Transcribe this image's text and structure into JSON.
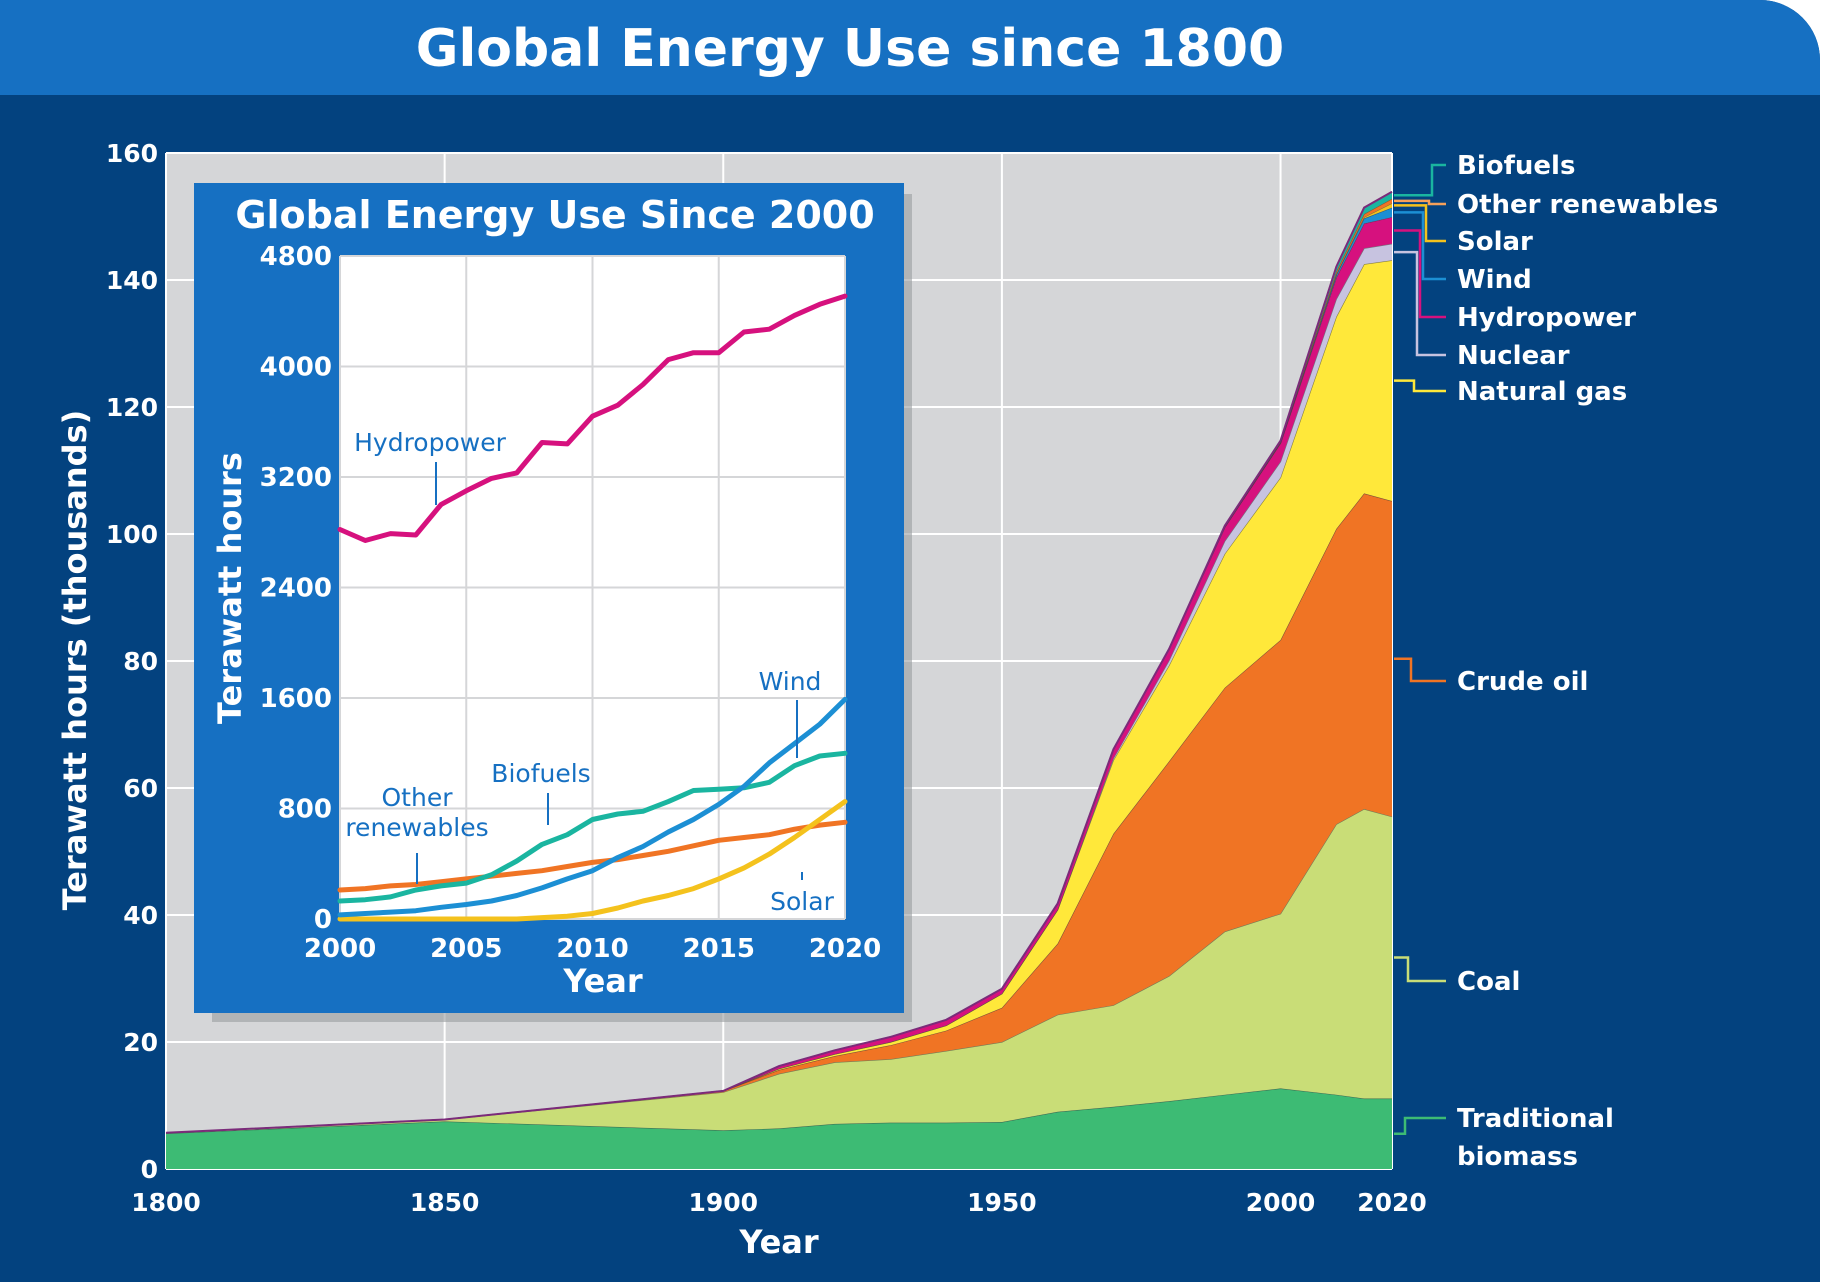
{
  "chart_data": [
    {
      "type": "area",
      "stacked": true,
      "title": "Global Energy Use since 1800",
      "xlabel": "Year",
      "ylabel": "Terawatt hours (thousands)",
      "xlim": [
        1800,
        2020
      ],
      "ylim": [
        0,
        160
      ],
      "x_ticks": [
        "1800",
        "1850",
        "1900",
        "1950",
        "2000",
        "2020"
      ],
      "y_ticks": [
        "0",
        "20",
        "40",
        "60",
        "80",
        "100",
        "120",
        "140",
        "160"
      ],
      "grid": true,
      "legend_placement": "right",
      "x": [
        1800,
        1850,
        1900,
        1910,
        1920,
        1930,
        1940,
        1950,
        1960,
        1970,
        1980,
        1990,
        2000,
        2010,
        2015,
        2020
      ],
      "series": [
        {
          "name": "Traditional biomass",
          "color": "#3dbb74",
          "values": [
            5.6,
            7.5,
            6.1,
            6.4,
            7.1,
            7.3,
            7.3,
            7.4,
            9.0,
            9.8,
            10.7,
            11.7,
            12.7,
            11.7,
            11.1,
            11.1
          ]
        },
        {
          "name": "Coal",
          "color": "#c9dd77",
          "values": [
            0.1,
            0.3,
            6.0,
            8.6,
            9.7,
            10.0,
            11.3,
            12.6,
            15.3,
            16.0,
            19.7,
            25.7,
            27.5,
            42.6,
            45.6,
            44.4
          ]
        },
        {
          "name": "Crude oil",
          "color": "#f07424",
          "values": [
            0,
            0,
            0.2,
            0.6,
            1.0,
            2.2,
            3.2,
            5.4,
            11.2,
            27.0,
            33.8,
            38.4,
            43.1,
            46.5,
            49.7,
            49.7
          ]
        },
        {
          "name": "Natural gas",
          "color": "#ffe83a",
          "values": [
            0,
            0,
            0,
            0.2,
            0.3,
            0.5,
            0.8,
            2.2,
            5.3,
            11.6,
            15.1,
            21.1,
            25.6,
            33.4,
            36.1,
            37.9
          ]
        },
        {
          "name": "Nuclear",
          "color": "#c7c3e0",
          "values": [
            0,
            0,
            0,
            0,
            0,
            0,
            0,
            0,
            0,
            0.3,
            0.8,
            2.0,
            2.5,
            2.8,
            2.5,
            2.6
          ]
        },
        {
          "name": "Hydropower",
          "color": "#d6117e",
          "values": [
            0,
            0,
            0,
            0.4,
            0.6,
            0.8,
            0.9,
            0.8,
            1.0,
            1.4,
            1.8,
            2.2,
            2.9,
            3.4,
            3.9,
            4.2
          ]
        },
        {
          "name": "Wind",
          "color": "#1c8fd4",
          "values": [
            0,
            0,
            0,
            0,
            0,
            0,
            0,
            0,
            0,
            0,
            0,
            0,
            0.1,
            0.4,
            0.8,
            1.5
          ]
        },
        {
          "name": "Solar",
          "color": "#f4c21d",
          "values": [
            0,
            0,
            0,
            0,
            0,
            0,
            0,
            0,
            0,
            0,
            0,
            0,
            0,
            0.1,
            0.2,
            0.7
          ]
        },
        {
          "name": "Other renewables",
          "color": "#f07424",
          "values": [
            0,
            0,
            0,
            0,
            0,
            0,
            0,
            0,
            0,
            0,
            0,
            0.2,
            0.2,
            0.4,
            0.5,
            0.7
          ]
        },
        {
          "name": "Biofuels",
          "color": "#1ab5a0",
          "values": [
            0,
            0,
            0,
            0,
            0,
            0,
            0,
            0,
            0,
            0,
            0,
            0,
            0.1,
            0.8,
            1.0,
            1.1
          ]
        }
      ]
    },
    {
      "type": "line",
      "title": "Global Energy Use Since 2000",
      "xlabel": "Year",
      "ylabel": "Terawatt hours",
      "xlim": [
        2000,
        2020
      ],
      "ylim": [
        0,
        4800
      ],
      "x_ticks": [
        "2000",
        "2005",
        "2010",
        "2015",
        "2020"
      ],
      "y_ticks": [
        "0",
        "800",
        "1600",
        "2400",
        "3200",
        "4000",
        "4800"
      ],
      "grid": true,
      "x": [
        2000,
        2001,
        2002,
        2003,
        2004,
        2005,
        2006,
        2007,
        2008,
        2009,
        2010,
        2011,
        2012,
        2013,
        2014,
        2015,
        2016,
        2017,
        2018,
        2019,
        2020
      ],
      "series": [
        {
          "name": "Hydropower",
          "color": "#d6117e",
          "values": [
            2820,
            2740,
            2790,
            2780,
            3000,
            3100,
            3190,
            3230,
            3450,
            3440,
            3640,
            3720,
            3870,
            4050,
            4100,
            4100,
            4250,
            4270,
            4370,
            4450,
            4510
          ]
        },
        {
          "name": "Wind",
          "color": "#1c8fd4",
          "values": [
            30,
            40,
            50,
            60,
            85,
            105,
            130,
            170,
            225,
            290,
            350,
            445,
            525,
            630,
            720,
            830,
            960,
            1130,
            1270,
            1410,
            1590
          ]
        },
        {
          "name": "Biofuels",
          "color": "#1ab5a0",
          "values": [
            130,
            140,
            160,
            210,
            240,
            260,
            320,
            420,
            540,
            610,
            720,
            760,
            780,
            850,
            930,
            940,
            950,
            990,
            1110,
            1180,
            1200
          ]
        },
        {
          "name": "Other renewables",
          "color": "#f07424",
          "values": [
            210,
            220,
            240,
            250,
            270,
            290,
            310,
            330,
            350,
            380,
            410,
            430,
            460,
            490,
            530,
            570,
            590,
            610,
            650,
            680,
            700
          ]
        },
        {
          "name": "Solar",
          "color": "#f4c21d",
          "values": [
            0,
            0,
            0,
            0,
            0,
            0,
            0,
            0,
            10,
            20,
            40,
            80,
            130,
            170,
            220,
            290,
            370,
            470,
            590,
            720,
            850
          ]
        }
      ]
    }
  ]
}
